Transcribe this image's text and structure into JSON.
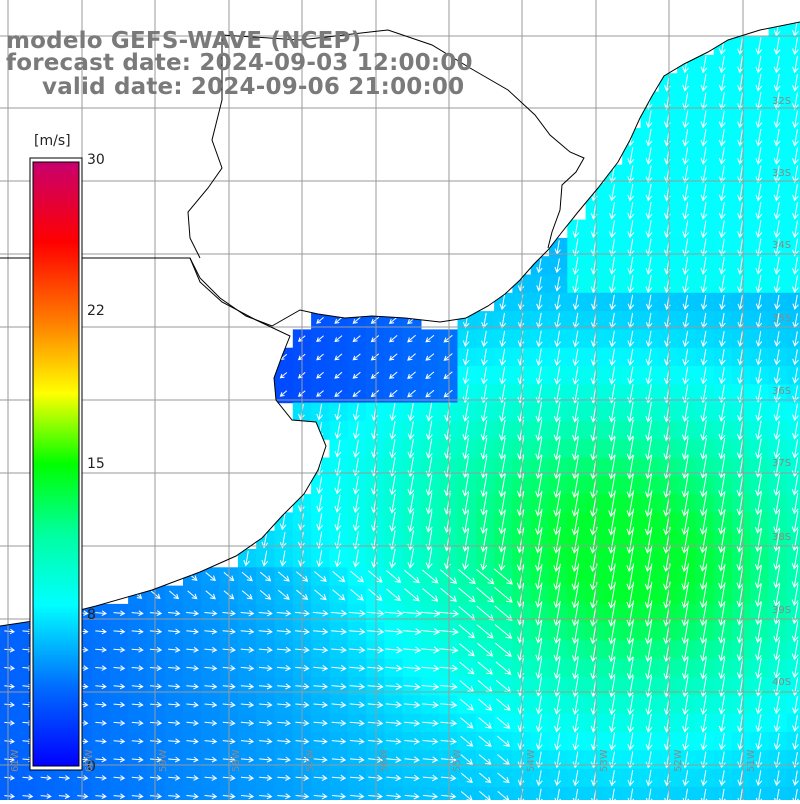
{
  "title": {
    "line1": "modelo GEFS-WAVE (NCEP)",
    "line2": "forecast date: 2024-09-03 12:00:00",
    "line3": "valid date: 2024-09-06 21:00:00"
  },
  "colorbar": {
    "unit": "[m/s]",
    "ticks": [
      "30",
      "22",
      "15",
      "8",
      "0"
    ],
    "colors": [
      "#0000ff",
      "#00a0ff",
      "#00ffff",
      "#00ff00",
      "#ffff00",
      "#ff8000",
      "#ff0000",
      "#c8006e"
    ]
  },
  "lat_labels": [
    "32S",
    "33S",
    "34S",
    "35S",
    "36S",
    "37S",
    "38S",
    "39S",
    "40S"
  ],
  "lon_labels": [
    "61W",
    "60W",
    "59W",
    "58W",
    "57W",
    "56W",
    "55W",
    "54W",
    "53W",
    "52W",
    "51W"
  ],
  "colors": {
    "land": "#ffffff",
    "grid": "#9a9a9a",
    "coast": "#000000",
    "arrow": "#ffffff"
  }
}
